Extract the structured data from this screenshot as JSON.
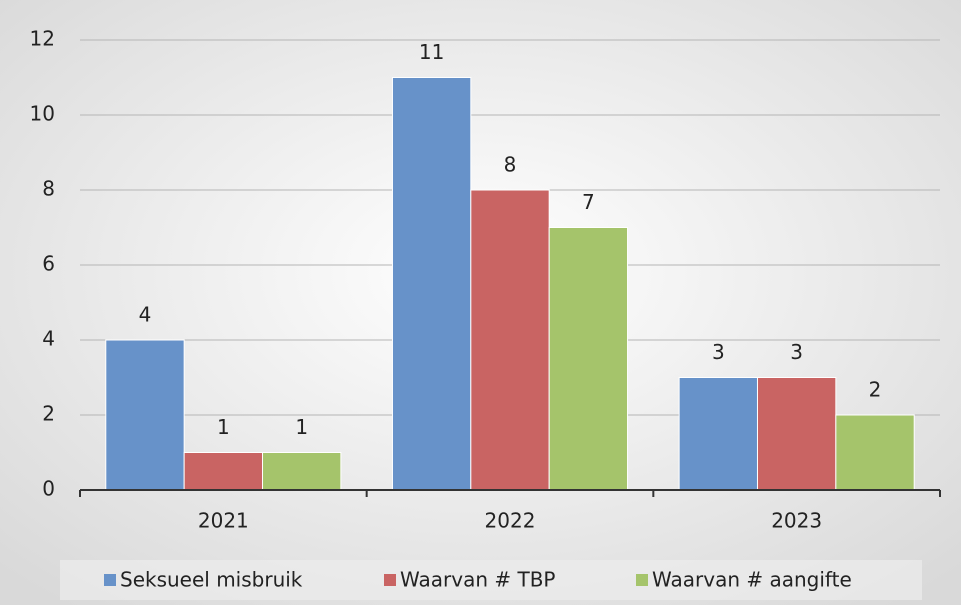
{
  "chart_data": {
    "type": "bar",
    "categories": [
      "2021",
      "2022",
      "2023"
    ],
    "series": [
      {
        "name": "Seksueel misbruik",
        "color": "#6792c9",
        "values": [
          4,
          11,
          3
        ]
      },
      {
        "name": "Waarvan # TBP",
        "color": "#c96463",
        "values": [
          1,
          8,
          3
        ]
      },
      {
        "name": "Waarvan # aangifte",
        "color": "#a5c46b",
        "values": [
          1,
          7,
          2
        ]
      }
    ],
    "ylim": [
      0,
      12
    ],
    "yticks": [
      0,
      2,
      4,
      6,
      8,
      10,
      12
    ],
    "grid": true,
    "legend": "bottom",
    "data_labels": true
  }
}
